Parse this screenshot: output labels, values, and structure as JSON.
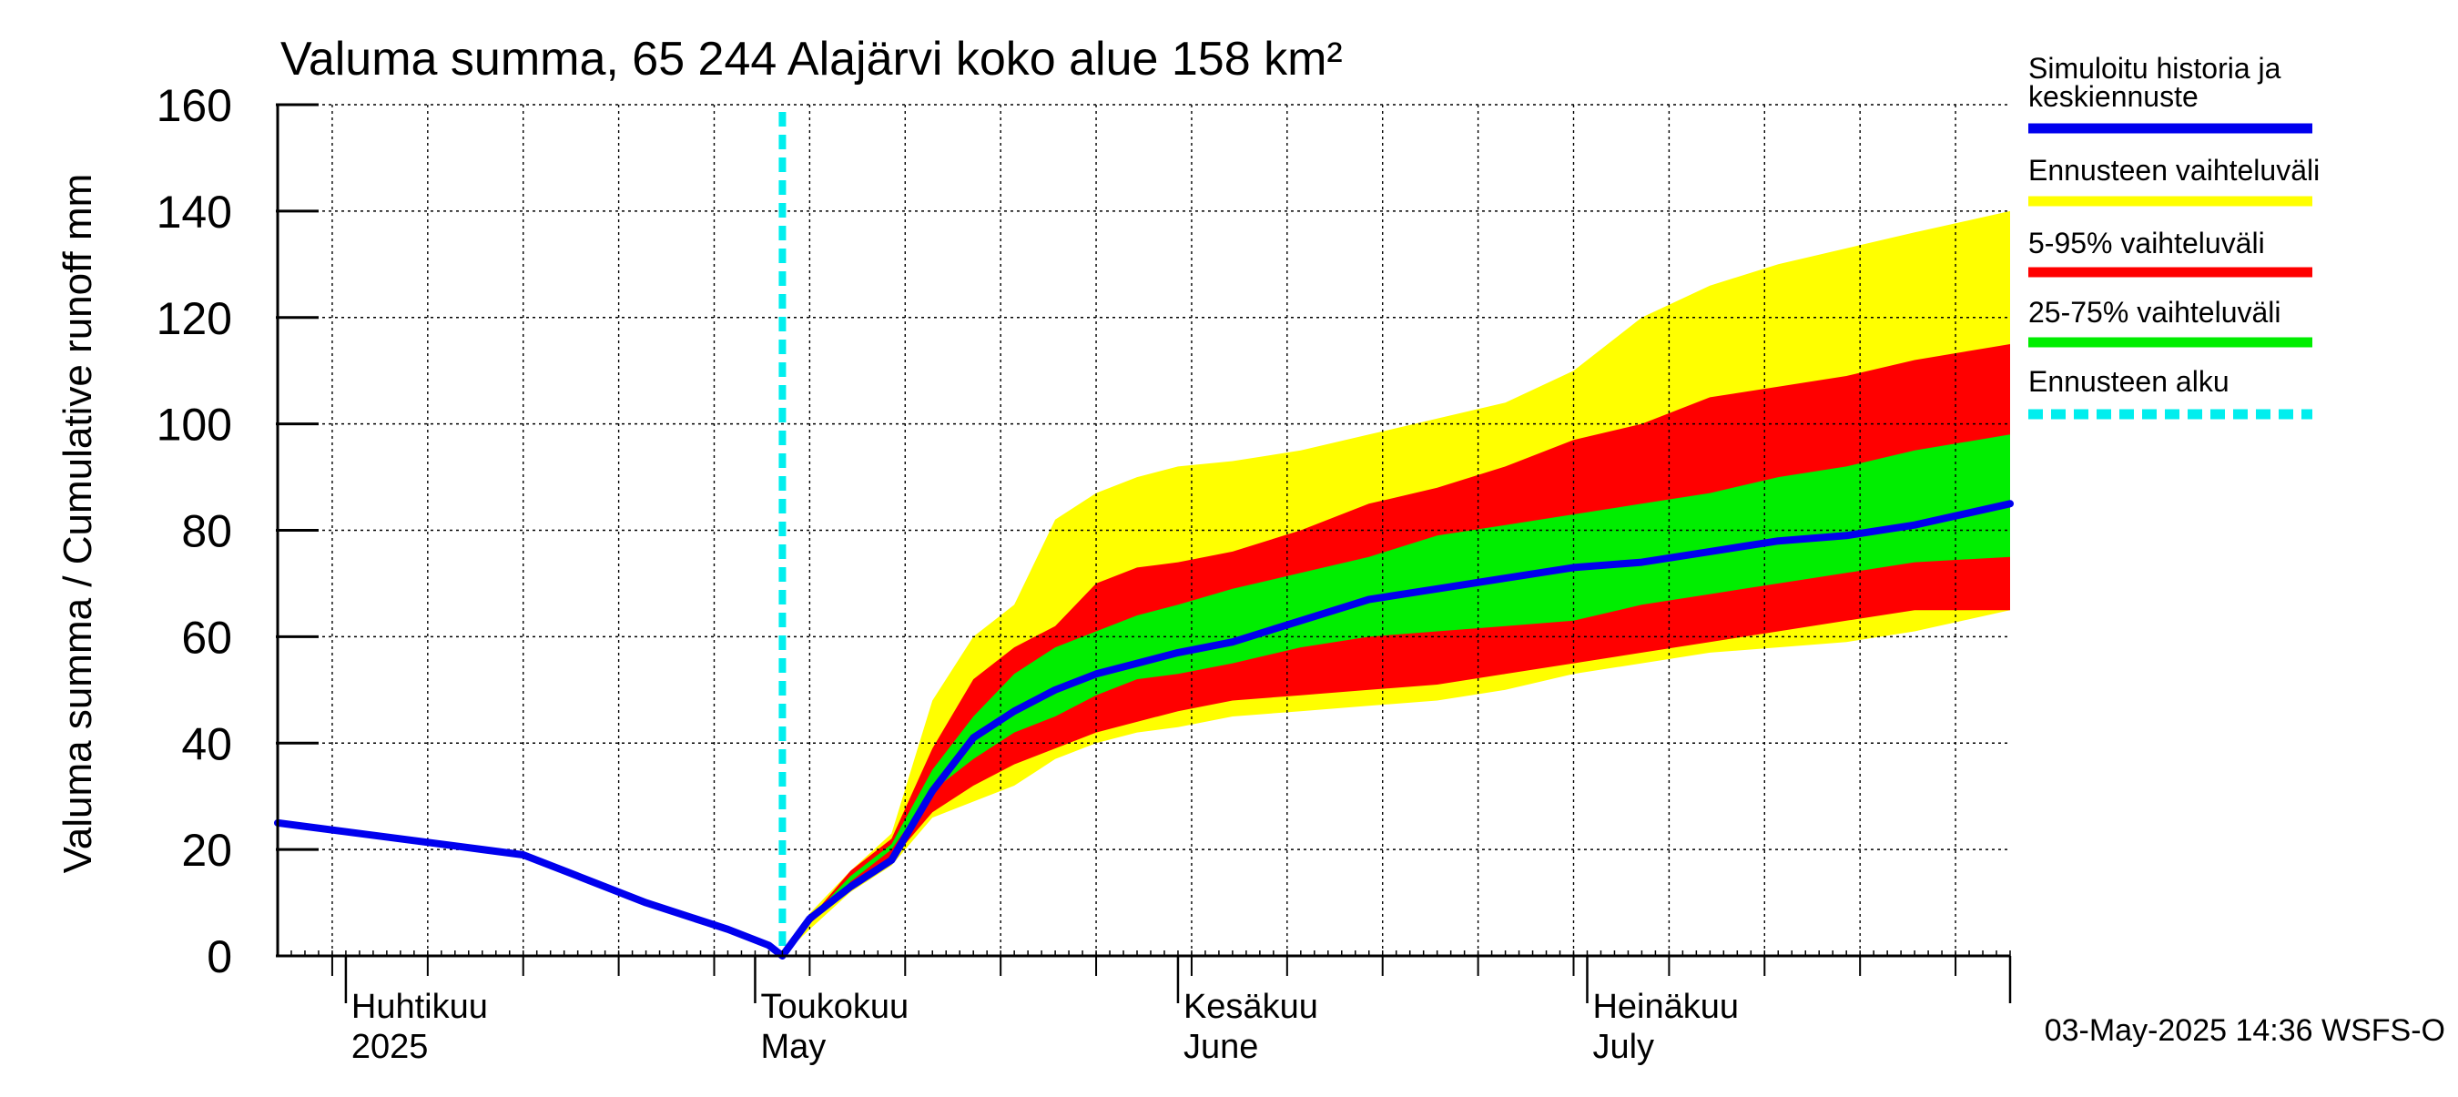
{
  "chart_data": {
    "type": "area",
    "title": "Valuma summa, 65 244 Alajärvi koko alue 158 km²",
    "ylabel": "Valuma summa / Cumulative runoff    mm",
    "ylim": [
      0,
      160
    ],
    "y_ticks": [
      0,
      20,
      40,
      60,
      80,
      100,
      120,
      140,
      160
    ],
    "x_range": [
      "2025-03-27",
      "2025-08-01"
    ],
    "month_labels": [
      {
        "date": "2025-04-01",
        "line1": "Huhtikuu",
        "line2": "2025"
      },
      {
        "date": "2025-05-01",
        "line1": "Toukokuu",
        "line2": "May"
      },
      {
        "date": "2025-06-01",
        "line1": "Kesäkuu",
        "line2": "June"
      },
      {
        "date": "2025-07-01",
        "line1": "Heinäkuu",
        "line2": "July"
      }
    ],
    "forecast_start": "2025-05-03",
    "grid": true,
    "legend_position": "right",
    "legend": [
      {
        "label": "Simuloitu historia ja keskiennuste",
        "color": "#0000ee",
        "style": "solid"
      },
      {
        "label": "Ennusteen vaihteluväli",
        "color": "#ffff00",
        "style": "solid"
      },
      {
        "label": "5-95% vaihteluväli",
        "color": "#ff0000",
        "style": "solid"
      },
      {
        "label": "25-75% vaihteluväli",
        "color": "#00ee00",
        "style": "solid"
      },
      {
        "label": "Ennusteen alku",
        "color": "#00eeee",
        "style": "dashed"
      }
    ],
    "x": [
      "2025-05-03",
      "2025-05-05",
      "2025-05-08",
      "2025-05-11",
      "2025-05-14",
      "2025-05-17",
      "2025-05-20",
      "2025-05-23",
      "2025-05-26",
      "2025-05-29",
      "2025-06-01",
      "2025-06-05",
      "2025-06-10",
      "2025-06-15",
      "2025-06-20",
      "2025-06-25",
      "2025-06-30",
      "2025-07-05",
      "2025-07-10",
      "2025-07-15",
      "2025-07-20",
      "2025-07-25",
      "2025-08-01"
    ],
    "series": [
      {
        "name": "Ennusteen vaihteluväli",
        "lower": [
          0,
          5,
          12,
          17,
          26,
          29,
          32,
          37,
          40,
          42,
          43,
          45,
          46,
          47,
          48,
          50,
          53,
          55,
          57,
          58,
          59,
          61,
          65
        ],
        "upper": [
          0,
          8,
          16,
          23,
          48,
          60,
          66,
          82,
          87,
          90,
          92,
          93,
          95,
          98,
          101,
          104,
          110,
          120,
          126,
          130,
          133,
          136,
          140
        ]
      },
      {
        "name": "5-95% vaihteluväli",
        "lower": [
          0,
          6,
          13,
          18,
          27,
          32,
          36,
          39,
          42,
          44,
          46,
          48,
          49,
          50,
          51,
          53,
          55,
          57,
          59,
          61,
          63,
          65,
          65
        ],
        "upper": [
          0,
          7,
          16,
          22,
          39,
          52,
          58,
          62,
          70,
          73,
          74,
          76,
          80,
          85,
          88,
          92,
          97,
          100,
          105,
          107,
          109,
          112,
          115
        ]
      },
      {
        "name": "25-75% vaihteluväli",
        "lower": [
          0,
          6,
          14,
          20,
          31,
          37,
          42,
          45,
          49,
          52,
          53,
          55,
          58,
          60,
          61,
          62,
          63,
          66,
          68,
          70,
          72,
          74,
          75
        ],
        "upper": [
          0,
          7,
          15,
          21,
          35,
          45,
          53,
          58,
          61,
          64,
          66,
          69,
          72,
          75,
          79,
          81,
          83,
          85,
          87,
          90,
          92,
          95,
          98
        ]
      },
      {
        "name": "Simuloitu historia ja keskiennuste",
        "x": [
          "2025-03-27",
          "2025-04-11",
          "2025-04-14",
          "2025-04-18",
          "2025-04-23",
          "2025-04-29",
          "2025-05-02",
          "2025-05-03",
          "2025-05-05",
          "2025-05-08",
          "2025-05-11",
          "2025-05-14",
          "2025-05-17",
          "2025-05-20",
          "2025-05-23",
          "2025-05-26",
          "2025-05-29",
          "2025-06-01",
          "2025-06-05",
          "2025-06-10",
          "2025-06-15",
          "2025-06-20",
          "2025-06-25",
          "2025-06-30",
          "2025-07-05",
          "2025-07-10",
          "2025-07-15",
          "2025-07-20",
          "2025-07-25",
          "2025-08-01"
        ],
        "values": [
          25,
          20,
          19,
          15,
          10,
          5,
          2,
          0,
          7,
          13,
          18,
          31,
          41,
          46,
          50,
          53,
          55,
          57,
          59,
          63,
          67,
          69,
          71,
          73,
          74,
          76,
          78,
          79,
          81,
          85
        ]
      }
    ]
  },
  "footer": {
    "timestamp": "03-May-2025 14:36 WSFS-O"
  }
}
